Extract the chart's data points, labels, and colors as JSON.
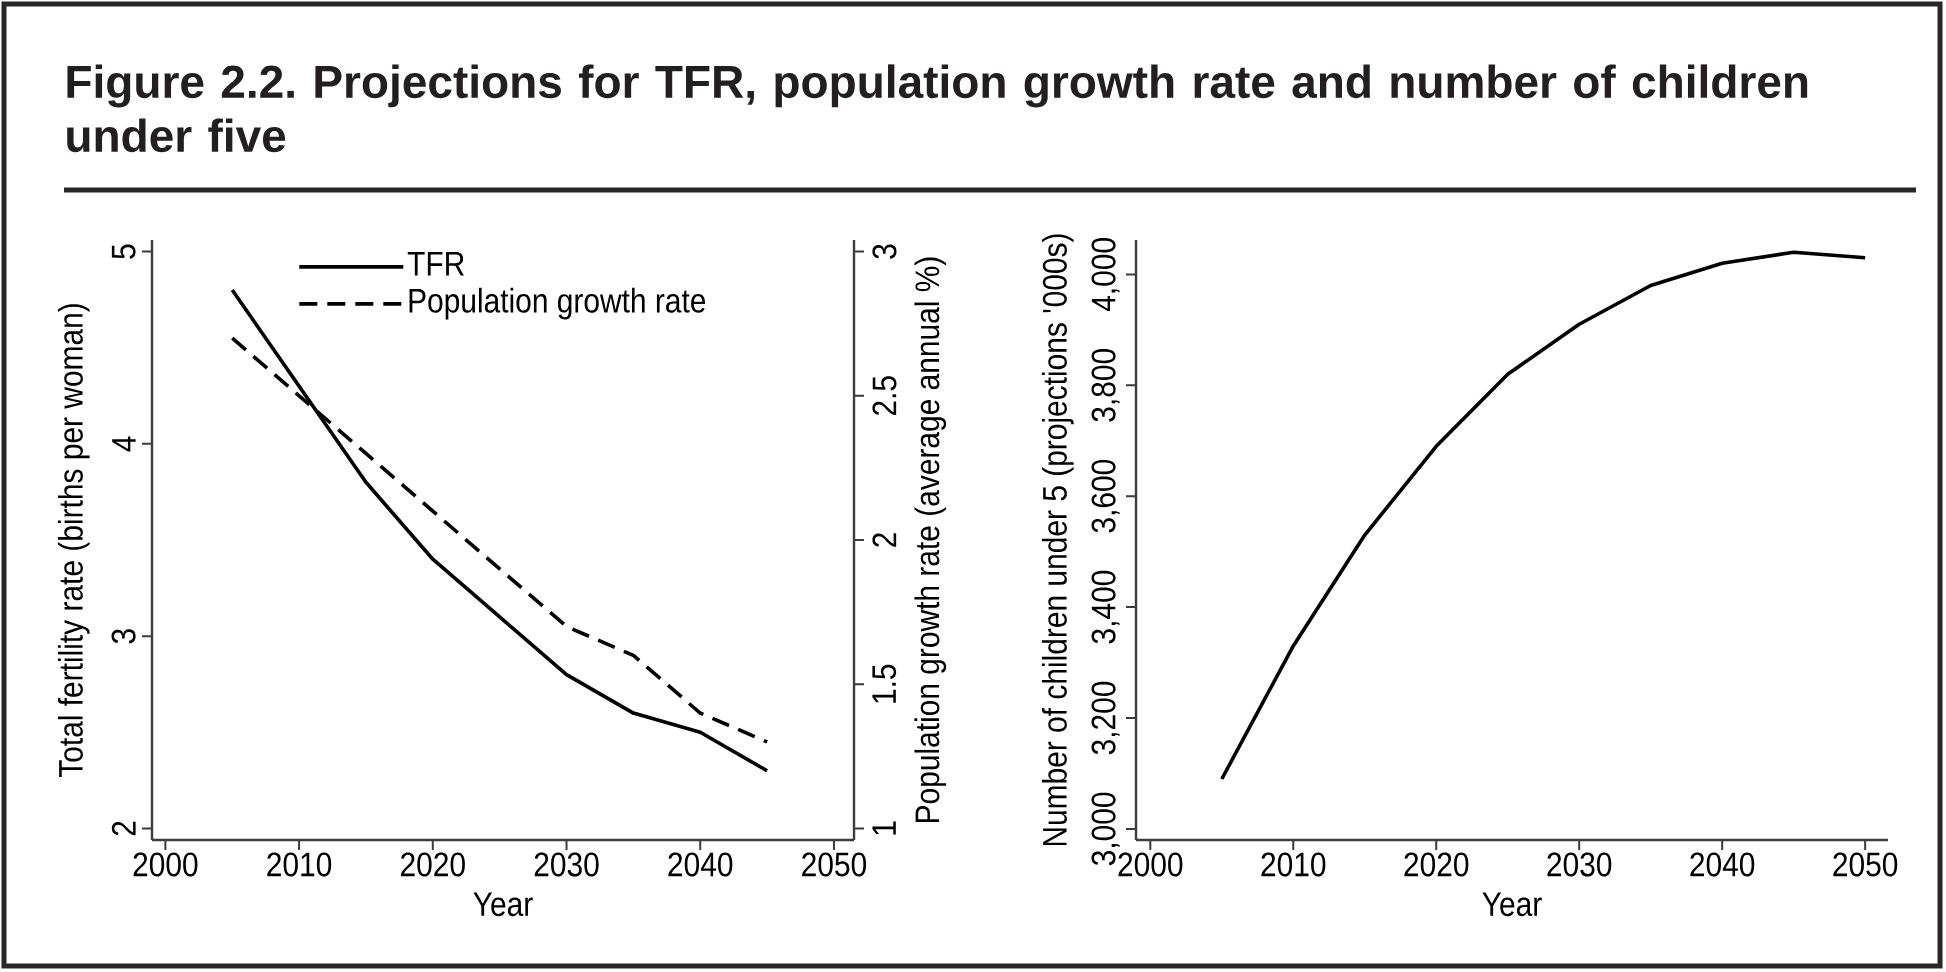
{
  "chart_data": [
    {
      "type": "line",
      "title": "Figure 2.2. Projections for TFR, population growth rate and number of children under five",
      "x": [
        2005,
        2010,
        2015,
        2020,
        2025,
        2030,
        2035,
        2040,
        2045
      ],
      "series": [
        {
          "name": "TFR",
          "color": "#000000",
          "line_style": "solid",
          "values": [
            4.8,
            4.3,
            3.8,
            3.4,
            3.1,
            2.8,
            2.6,
            2.5,
            2.3
          ]
        },
        {
          "name": "Population growth rate",
          "color": "#000000",
          "line_style": "dashed",
          "axis": "y2",
          "values": [
            2.7,
            2.5,
            2.3,
            2.1,
            1.9,
            1.7,
            1.6,
            1.4,
            1.3
          ]
        }
      ],
      "xlabel": "Year",
      "ylabel": "Total fertility rate (births per woman)",
      "y2label": "Population growth rate (average annual %)",
      "xlim": [
        1999,
        2051.5
      ],
      "ylim": [
        1.94,
        5.06
      ],
      "y2lim": [
        0.96,
        3.04
      ],
      "xticks": [
        2000,
        2010,
        2020,
        2030,
        2040,
        2050
      ],
      "yticks": [
        2,
        3,
        4,
        5
      ],
      "y2ticks": [
        1,
        1.5,
        2,
        2.5,
        3
      ],
      "legend": "top"
    },
    {
      "type": "line",
      "x": [
        2005,
        2010,
        2015,
        2020,
        2025,
        2030,
        2035,
        2040,
        2045,
        2050
      ],
      "values": [
        3090,
        3330,
        3530,
        3690,
        3820,
        3910,
        3980,
        4020,
        4040,
        4030
      ],
      "color": "#000000",
      "xlabel": "Year",
      "ylabel": "Number of children under 5 (projections '000s)",
      "xlim": [
        1999,
        2051.6
      ],
      "ylim": [
        2980,
        4062
      ],
      "xticks": [
        2000,
        2010,
        2020,
        2030,
        2040,
        2050
      ],
      "yticks": [
        {
          "value": 3000,
          "label": "3,000"
        },
        {
          "value": 3200,
          "label": "3,200"
        },
        {
          "value": 3400,
          "label": "3,400"
        },
        {
          "value": 3600,
          "label": "3,600"
        },
        {
          "value": 3800,
          "label": "3,800"
        },
        {
          "value": 4000,
          "label": "4,000"
        }
      ]
    }
  ]
}
